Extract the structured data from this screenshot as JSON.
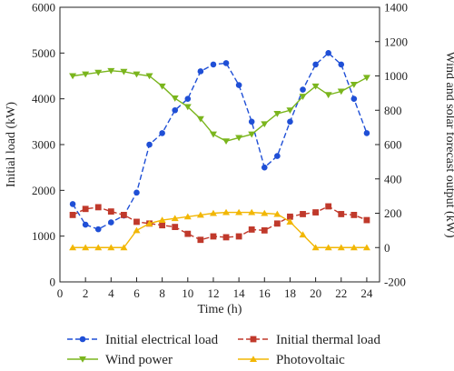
{
  "chart_data": {
    "type": "line",
    "xlabel": "Time (h)",
    "ylabel_left": "Initial load (kW)",
    "ylabel_right": "Wind and solar forecast output (kW)",
    "x": [
      1,
      2,
      3,
      4,
      5,
      6,
      7,
      8,
      9,
      10,
      11,
      12,
      13,
      14,
      15,
      16,
      17,
      18,
      19,
      20,
      21,
      22,
      23,
      24
    ],
    "xlim": [
      0,
      25
    ],
    "xticks": [
      "0",
      "2",
      "4",
      "6",
      "8",
      "10",
      "12",
      "14",
      "16",
      "18",
      "20",
      "22",
      "24"
    ],
    "ylim_left": [
      0,
      6000
    ],
    "yticks_left": [
      "0",
      "1000",
      "2000",
      "3000",
      "4000",
      "5000",
      "6000"
    ],
    "ylim_right": [
      -200,
      1400
    ],
    "yticks_right": [
      "-200",
      "0",
      "200",
      "400",
      "600",
      "800",
      "1000",
      "1200",
      "1400"
    ],
    "legend_position": "bottom",
    "series": [
      {
        "name": "Initial electrical load",
        "axis": "left",
        "color": "#1f4fd6",
        "marker": "circle",
        "dash": "dashed",
        "values": [
          1700,
          1250,
          1150,
          1300,
          1450,
          1950,
          3000,
          3250,
          3750,
          4000,
          4600,
          4750,
          4780,
          4300,
          3500,
          2500,
          2750,
          3500,
          4200,
          4750,
          5000,
          4750,
          4000,
          3250
        ]
      },
      {
        "name": "Initial thermal load",
        "axis": "right",
        "color": "#c0392b",
        "marker": "square",
        "dash": "dashed",
        "values": [
          190,
          225,
          235,
          210,
          190,
          150,
          140,
          130,
          120,
          80,
          45,
          65,
          60,
          65,
          105,
          100,
          140,
          180,
          195,
          205,
          240,
          195,
          190,
          160
        ]
      },
      {
        "name": "Wind power",
        "axis": "right",
        "color": "#7ab51d",
        "marker": "triangle-down",
        "dash": "solid",
        "values": [
          1000,
          1010,
          1020,
          1030,
          1025,
          1010,
          1000,
          940,
          870,
          820,
          750,
          660,
          620,
          640,
          660,
          720,
          780,
          800,
          880,
          940,
          890,
          910,
          950,
          990
        ]
      },
      {
        "name": "Photovoltaic",
        "axis": "right",
        "color": "#f2b705",
        "marker": "triangle-up",
        "dash": "solid",
        "values": [
          0,
          0,
          0,
          0,
          0,
          100,
          140,
          160,
          170,
          180,
          190,
          200,
          205,
          205,
          205,
          200,
          195,
          150,
          75,
          0,
          0,
          0,
          0,
          0
        ]
      }
    ]
  }
}
